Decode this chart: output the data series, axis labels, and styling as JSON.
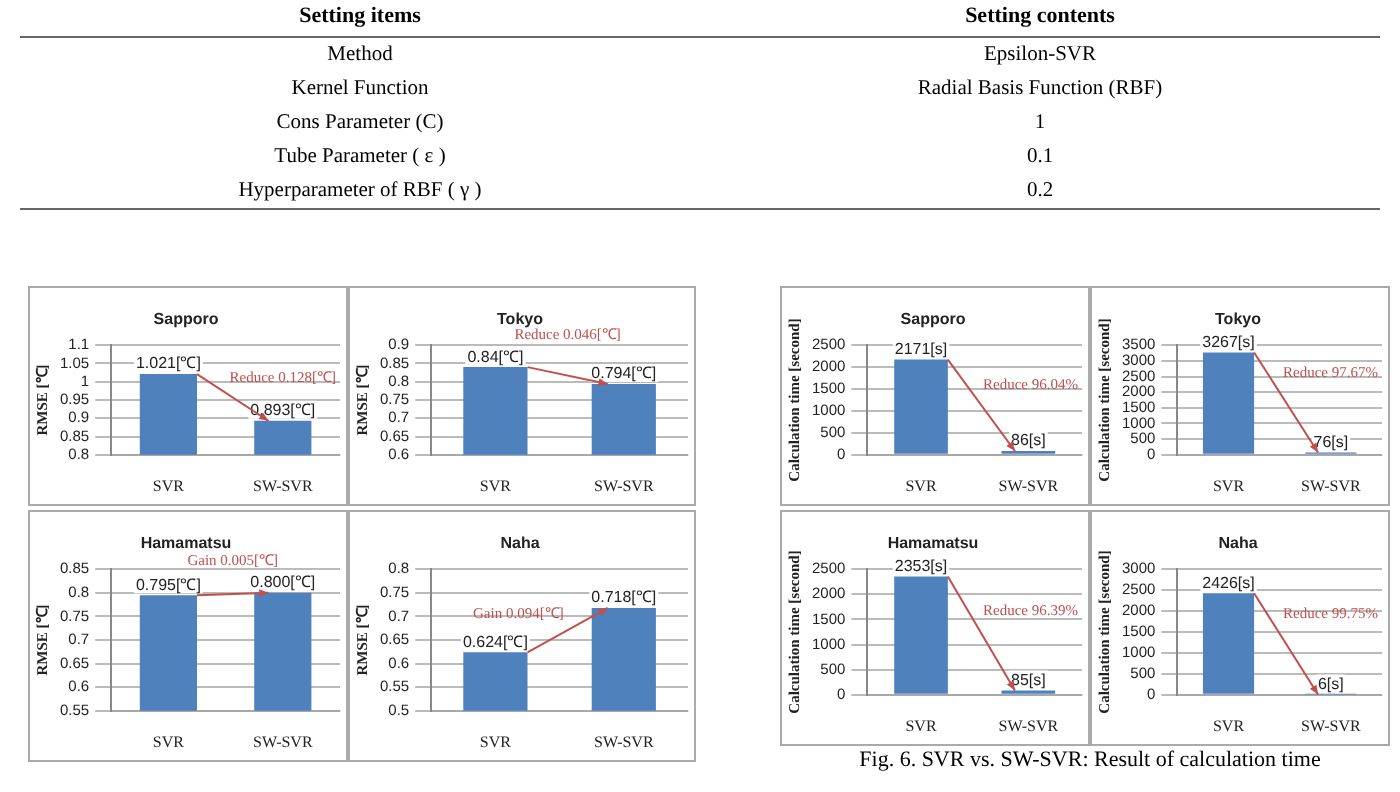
{
  "chart_data": [
    {
      "type": "other",
      "annotations": [
        "Setting items",
        "Setting contents",
        "Method",
        "Epsilon-SVR",
        "Kernel Function",
        "Radial Basis Function (RBF)",
        "Cons Parameter (C)",
        "1",
        "Tube Parameter ( ε )",
        "0.1",
        "Hyperparameter of RBF ( γ )",
        "0.2"
      ]
    },
    {
      "type": "bar",
      "title": "Sapporo",
      "ylabel": "RMSE [℃]",
      "categories": [
        "SVR",
        "SW-SVR"
      ],
      "values": [
        1.021,
        0.893
      ],
      "value_labels": [
        "1.021[℃]",
        "0.893[℃]"
      ],
      "color": "#4f81bd",
      "ylim": [
        0.8,
        1.1
      ],
      "yticks": [
        0.8,
        0.85,
        0.9,
        0.95,
        1,
        1.05,
        1.1
      ],
      "grid": "y",
      "annotations": [
        "Reduce 0.128[℃]"
      ]
    },
    {
      "type": "bar",
      "title": "Tokyo",
      "ylabel": "RMSE [℃]",
      "categories": [
        "SVR",
        "SW-SVR"
      ],
      "values": [
        0.84,
        0.794
      ],
      "value_labels": [
        "0.84[℃]",
        "0.794[℃]"
      ],
      "color": "#4f81bd",
      "ylim": [
        0.6,
        0.9
      ],
      "yticks": [
        0.6,
        0.65,
        0.7,
        0.75,
        0.8,
        0.85,
        0.9
      ],
      "grid": "y",
      "annotations": [
        "Reduce 0.046[℃]"
      ]
    },
    {
      "type": "bar",
      "title": "Hamamatsu",
      "ylabel": "RMSE [℃]",
      "categories": [
        "SVR",
        "SW-SVR"
      ],
      "values": [
        0.795,
        0.8
      ],
      "value_labels": [
        "0.795[℃]",
        "0.800[℃]"
      ],
      "color": "#4f81bd",
      "ylim": [
        0.55,
        0.85
      ],
      "yticks": [
        0.55,
        0.6,
        0.65,
        0.7,
        0.75,
        0.8,
        0.85
      ],
      "grid": "y",
      "annotations": [
        "Gain 0.005[℃]"
      ]
    },
    {
      "type": "bar",
      "title": "Naha",
      "ylabel": "RMSE [℃]",
      "categories": [
        "SVR",
        "SW-SVR"
      ],
      "values": [
        0.624,
        0.718
      ],
      "value_labels": [
        "0.624[℃]",
        "0.718[℃]"
      ],
      "color": "#4f81bd",
      "ylim": [
        0.5,
        0.8
      ],
      "yticks": [
        0.5,
        0.55,
        0.6,
        0.65,
        0.7,
        0.75,
        0.8
      ],
      "grid": "y",
      "annotations": [
        "Gain 0.094[℃]"
      ]
    },
    {
      "type": "bar",
      "title": "Sapporo",
      "ylabel": "Calculation time [second]",
      "categories": [
        "SVR",
        "SW-SVR"
      ],
      "values": [
        2171,
        86
      ],
      "value_labels": [
        "2171[s]",
        "86[s]"
      ],
      "color": "#4f81bd",
      "ylim": [
        0,
        2500
      ],
      "yticks": [
        0,
        500,
        1000,
        1500,
        2000,
        2500
      ],
      "grid": "y",
      "annotations": [
        "Reduce 96.04%"
      ]
    },
    {
      "type": "bar",
      "title": "Tokyo",
      "ylabel": "Calculation time [second]",
      "categories": [
        "SVR",
        "SW-SVR"
      ],
      "values": [
        3267,
        76
      ],
      "value_labels": [
        "3267[s]",
        "76[s]"
      ],
      "color": "#4f81bd",
      "ylim": [
        0,
        3500
      ],
      "yticks": [
        0,
        500,
        1000,
        1500,
        2000,
        2500,
        3000,
        3500
      ],
      "grid": "y",
      "annotations": [
        "Reduce 97.67%"
      ]
    },
    {
      "type": "bar",
      "title": "Hamamatsu",
      "ylabel": "Calculation time [second]",
      "categories": [
        "SVR",
        "SW-SVR"
      ],
      "values": [
        2353,
        85
      ],
      "value_labels": [
        "2353[s]",
        "85[s]"
      ],
      "color": "#4f81bd",
      "ylim": [
        0,
        2500
      ],
      "yticks": [
        0,
        500,
        1000,
        1500,
        2000,
        2500
      ],
      "grid": "y",
      "annotations": [
        "Reduce 96.39%"
      ]
    },
    {
      "type": "bar",
      "title": "Naha",
      "ylabel": "Calculation time [second]",
      "categories": [
        "SVR",
        "SW-SVR"
      ],
      "values": [
        2426,
        6
      ],
      "value_labels": [
        "2426[s]",
        "6[s]"
      ],
      "color": "#4f81bd",
      "ylim": [
        0,
        3000
      ],
      "yticks": [
        0,
        500,
        1000,
        1500,
        2000,
        2500,
        3000
      ],
      "grid": "y",
      "annotations": [
        "Reduce 99.75%",
        "Fig. 6. SVR vs. SW-SVR: Result of calculation time"
      ]
    }
  ]
}
